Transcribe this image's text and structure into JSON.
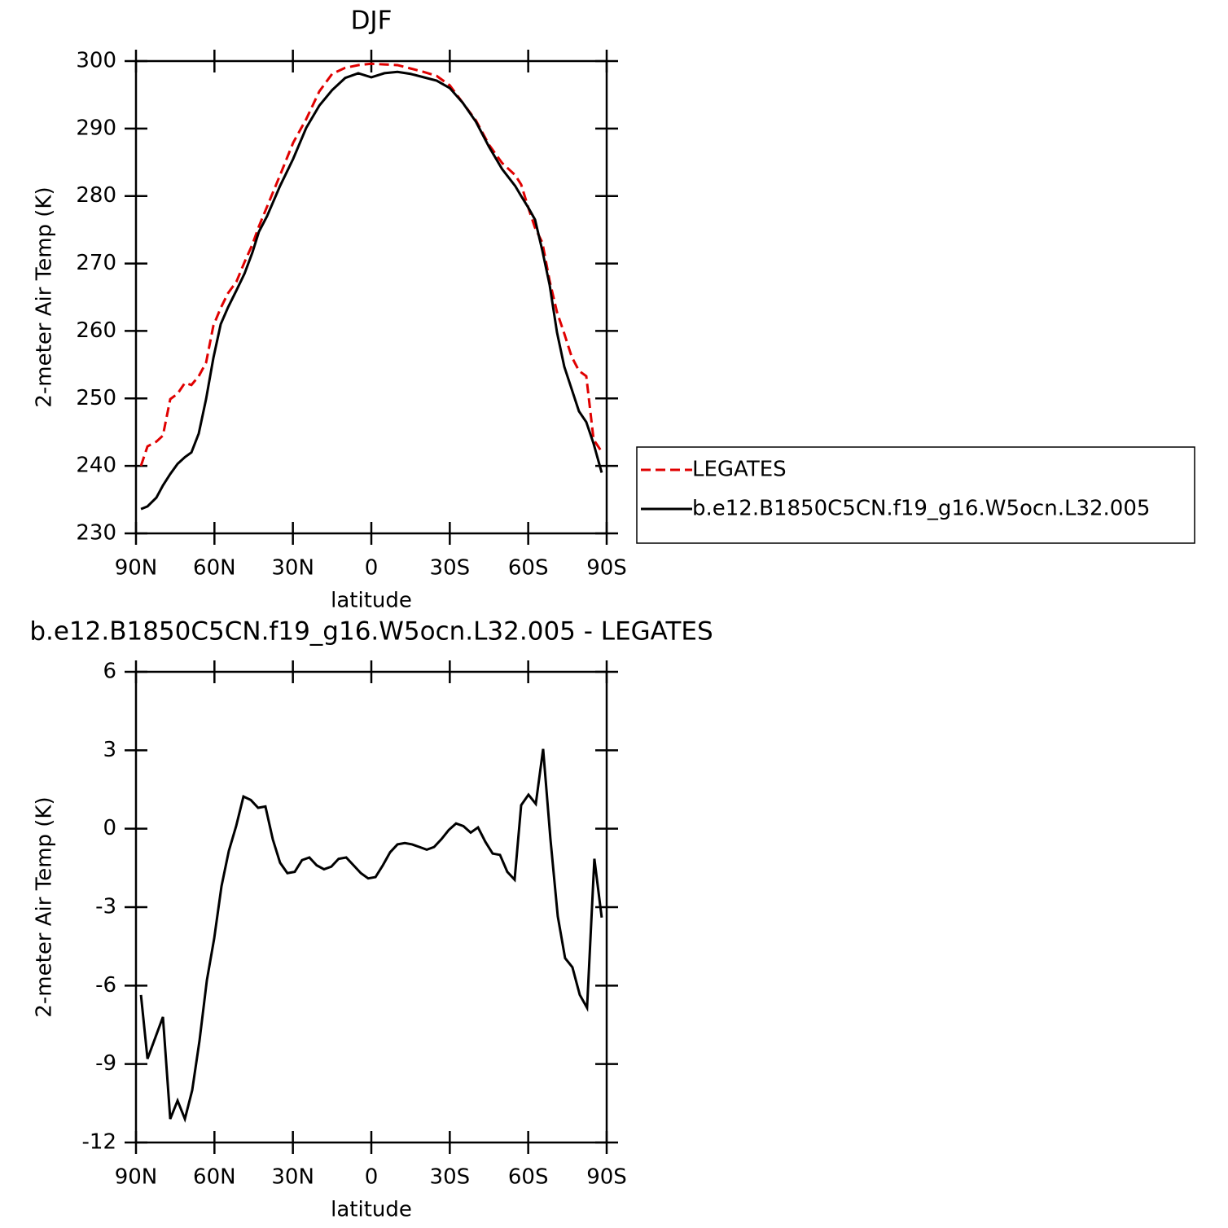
{
  "chart_data": [
    {
      "type": "line",
      "title": "DJF",
      "xlabel": "latitude",
      "ylabel": "2-meter Air Temp (K)",
      "x": [
        88.1,
        85.6,
        82.2,
        79.7,
        76.9,
        74.1,
        71.3,
        68.8,
        66,
        63.2,
        60.4,
        57.6,
        54.8,
        51.6,
        48.5,
        45.5,
        43,
        39.9,
        34.9,
        29.9,
        24.9,
        19.9,
        15,
        10,
        5,
        0,
        -5,
        -10,
        -15,
        -20,
        -25,
        -30,
        -35,
        -40,
        -45,
        -50,
        -55,
        -57.3,
        -60,
        -62.6,
        -65.4,
        -68.2,
        -71,
        -73.8,
        -76.6,
        -79.4,
        -82.2,
        -85,
        -88.1
      ],
      "series": [
        {
          "name": "LEGATES",
          "color": "#e00000",
          "line_style": "dashed",
          "values": [
            240,
            242.9,
            243.6,
            244.5,
            249.9,
            250.7,
            252.3,
            252,
            253.3,
            255.3,
            260.8,
            263.4,
            265.6,
            267.3,
            270.2,
            272.8,
            275.5,
            278.4,
            283.1,
            287.9,
            291.4,
            295.5,
            298.1,
            299,
            299.4,
            299.6,
            299.5,
            299.4,
            298.9,
            298.4,
            297.8,
            296.4,
            293.8,
            291.2,
            287.6,
            284.9,
            283.1,
            281.7,
            278.3,
            275.3,
            273.1,
            267.4,
            262.8,
            259.6,
            256.2,
            254.1,
            253.3,
            243.9,
            242.1
          ]
        },
        {
          "name": "b.e12.B1850C5CN.f19_g16.W5ocn.L32.005",
          "color": "#000000",
          "line_style": "solid",
          "values": [
            233.6,
            234,
            235.3,
            237.1,
            238.8,
            240.3,
            241.3,
            242,
            244.8,
            249.9,
            256,
            261,
            263.5,
            266,
            268.5,
            271.6,
            274.7,
            277,
            281.5,
            285.5,
            290.1,
            293.4,
            295.7,
            297.5,
            298.2,
            297.6,
            298.2,
            298.4,
            298.1,
            297.6,
            297.1,
            296,
            293.8,
            291,
            287.3,
            284,
            281.5,
            280,
            278.3,
            276.5,
            271.9,
            266.8,
            259.8,
            254.7,
            251.4,
            248.1,
            246.5,
            243.3,
            239
          ]
        }
      ],
      "xlim": [
        90,
        -90
      ],
      "xticks": [
        {
          "value": 90,
          "label": "90N"
        },
        {
          "value": 60,
          "label": "60N"
        },
        {
          "value": 30,
          "label": "30N"
        },
        0,
        {
          "value": -30,
          "label": "30S"
        },
        {
          "value": -60,
          "label": "60S"
        },
        {
          "value": -90,
          "label": "90S"
        }
      ],
      "ylim": [
        230,
        300
      ],
      "yticks": [
        230,
        240,
        250,
        260,
        270,
        280,
        290,
        300
      ],
      "legend": "right"
    },
    {
      "type": "line",
      "title": "b.e12.B1850C5CN.f19_g16.W5ocn.L32.005 - LEGATES",
      "xlabel": "latitude",
      "ylabel": "2-meter Air Temp (K)",
      "x": [
        88.1,
        85.6,
        79.7,
        76.9,
        74.1,
        71.3,
        68.5,
        65.7,
        62.9,
        60.1,
        57.3,
        54.5,
        51.7,
        48.9,
        46.1,
        43.3,
        40.5,
        37.7,
        34.9,
        32.1,
        29.3,
        26.5,
        23.7,
        20.9,
        18.1,
        15.3,
        12.5,
        9.6,
        6.8,
        4,
        1.2,
        -1.6,
        -4.4,
        -7.2,
        -10,
        -12.8,
        -15.6,
        -18.4,
        -21.2,
        -24,
        -26.8,
        -29.6,
        -32.4,
        -35.2,
        -38,
        -40.8,
        -43.6,
        -46.4,
        -49.2,
        -52,
        -54.8,
        -57.3,
        -60.1,
        -62.9,
        -65.7,
        -68.5,
        -71.3,
        -74.1,
        -76.9,
        -79.7,
        -82.5,
        -85.3,
        -88.1
      ],
      "values": [
        -6.36,
        -8.8,
        -7.2,
        -11.1,
        -10.4,
        -11.1,
        -10,
        -8.1,
        -5.8,
        -4.2,
        -2.2,
        -0.85,
        0.1,
        1.23,
        1.1,
        0.8,
        0.85,
        -0.4,
        -1.3,
        -1.7,
        -1.65,
        -1.2,
        -1.1,
        -1.4,
        -1.55,
        -1.45,
        -1.15,
        -1.1,
        -1.4,
        -1.7,
        -1.9,
        -1.85,
        -1.4,
        -0.9,
        -0.6,
        -0.55,
        -0.6,
        -0.7,
        -0.8,
        -0.7,
        -0.4,
        -0.05,
        0.2,
        0.1,
        -0.15,
        0.05,
        -0.5,
        -0.95,
        -1,
        -1.65,
        -1.95,
        0.9,
        1.3,
        0.95,
        3.05,
        -0.4,
        -3.35,
        -4.95,
        -5.3,
        -6.35,
        -6.85,
        -1.15,
        -3.4
      ],
      "color": "#000000",
      "xlim": [
        90,
        -90
      ],
      "xticks": [
        {
          "value": 90,
          "label": "90N"
        },
        {
          "value": 60,
          "label": "60N"
        },
        {
          "value": 30,
          "label": "30N"
        },
        0,
        {
          "value": -30,
          "label": "30S"
        },
        {
          "value": -60,
          "label": "60S"
        },
        {
          "value": -90,
          "label": "90S"
        }
      ],
      "ylim": [
        -12,
        6
      ],
      "yticks": [
        -12,
        -9,
        -6,
        -3,
        0,
        3,
        6
      ]
    }
  ]
}
